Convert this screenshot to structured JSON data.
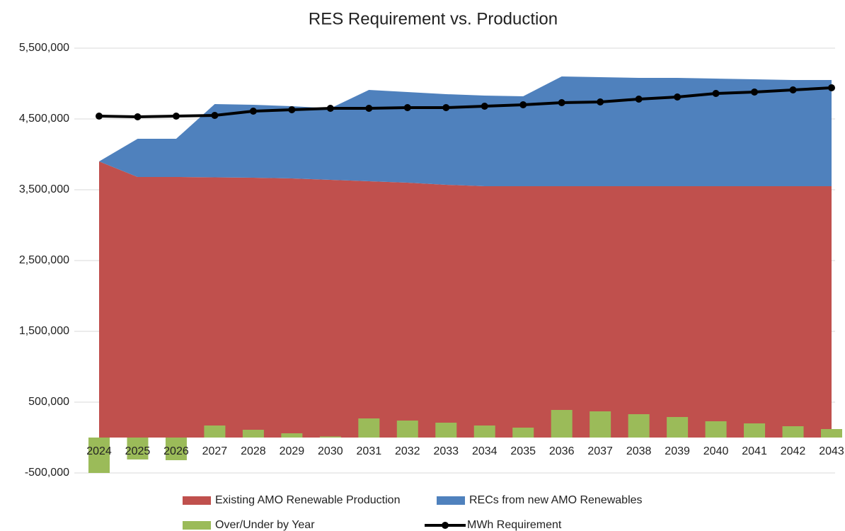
{
  "chart_data": {
    "type": "combo",
    "title": "RES Requirement vs. Production",
    "categories": [
      "2024",
      "2025",
      "2026",
      "2027",
      "2028",
      "2029",
      "2030",
      "2031",
      "2032",
      "2033",
      "2034",
      "2035",
      "2036",
      "2037",
      "2038",
      "2039",
      "2040",
      "2041",
      "2042",
      "2043"
    ],
    "series": [
      {
        "name": "Existing AMO Renewable Production",
        "kind": "area",
        "color": "#c0504d",
        "values": [
          3900000,
          3680000,
          3680000,
          3675000,
          3670000,
          3660000,
          3640000,
          3620000,
          3600000,
          3570000,
          3550000,
          3550000,
          3550000,
          3550000,
          3550000,
          3550000,
          3550000,
          3550000,
          3550000,
          3550000
        ]
      },
      {
        "name": "RECs from new AMO Renewables",
        "kind": "area",
        "color": "#4f81bd",
        "values": [
          0,
          540000,
          540000,
          1035000,
          1030000,
          1020000,
          1010000,
          1290000,
          1280000,
          1280000,
          1280000,
          1270000,
          1550000,
          1540000,
          1530000,
          1530000,
          1520000,
          1510000,
          1500000,
          1500000
        ]
      },
      {
        "name": "Over/Under by Year",
        "kind": "bar",
        "color": "#9bbb59",
        "values": [
          -500000,
          -310000,
          -320000,
          170000,
          110000,
          60000,
          15000,
          270000,
          240000,
          210000,
          170000,
          140000,
          390000,
          370000,
          330000,
          290000,
          230000,
          200000,
          160000,
          120000
        ]
      },
      {
        "name": "MWh Requirement",
        "kind": "line",
        "color": "#000000",
        "values": [
          4540000,
          4530000,
          4540000,
          4550000,
          4610000,
          4630000,
          4650000,
          4650000,
          4660000,
          4660000,
          4680000,
          4700000,
          4730000,
          4740000,
          4780000,
          4810000,
          4860000,
          4880000,
          4910000,
          4940000
        ]
      }
    ],
    "ylim": [
      -500000,
      5500000
    ],
    "yticks": [
      {
        "value": -500000,
        "label": "-500,000"
      },
      {
        "value": 500000,
        "label": "500,000"
      },
      {
        "value": 1500000,
        "label": "1,500,000"
      },
      {
        "value": 2500000,
        "label": "2,500,000"
      },
      {
        "value": 3500000,
        "label": "3,500,000"
      },
      {
        "value": 4500000,
        "label": "4,500,000"
      },
      {
        "value": 5500000,
        "label": "5,500,000"
      }
    ],
    "grid": true
  }
}
